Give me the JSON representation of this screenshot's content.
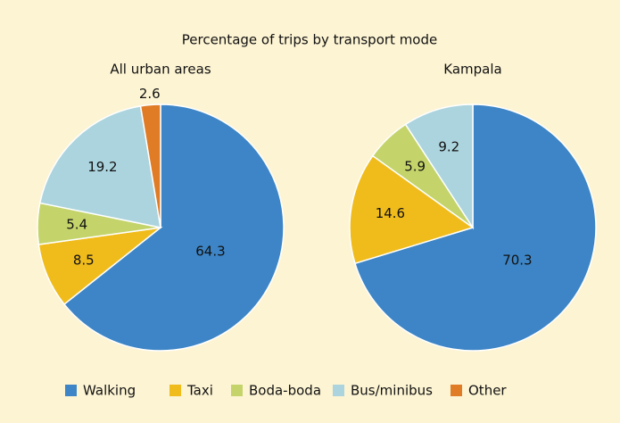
{
  "title": "Percentage of trips by transport mode",
  "legend": {
    "items": [
      {
        "label": "Walking",
        "color": "#3d85c6"
      },
      {
        "label": "Taxi",
        "color": "#f0bc1c"
      },
      {
        "label": "Boda-boda",
        "color": "#c4d46a"
      },
      {
        "label": "Bus/minibus",
        "color": "#acd4de"
      },
      {
        "label": "Other",
        "color": "#e07b26"
      }
    ]
  },
  "chart_data": [
    {
      "type": "pie",
      "title": "All urban areas",
      "categories": [
        "Walking",
        "Taxi",
        "Boda-boda",
        "Bus/minibus",
        "Other"
      ],
      "values": [
        64.3,
        8.5,
        5.4,
        19.2,
        2.6
      ],
      "colors": [
        "#3d85c6",
        "#f0bc1c",
        "#c4d46a",
        "#acd4de",
        "#e07b26"
      ]
    },
    {
      "type": "pie",
      "title": "Kampala",
      "categories": [
        "Walking",
        "Taxi",
        "Boda-boda",
        "Bus/minibus"
      ],
      "values": [
        70.3,
        14.6,
        5.9,
        9.2
      ],
      "colors": [
        "#3d85c6",
        "#f0bc1c",
        "#c4d46a",
        "#acd4de"
      ]
    }
  ]
}
